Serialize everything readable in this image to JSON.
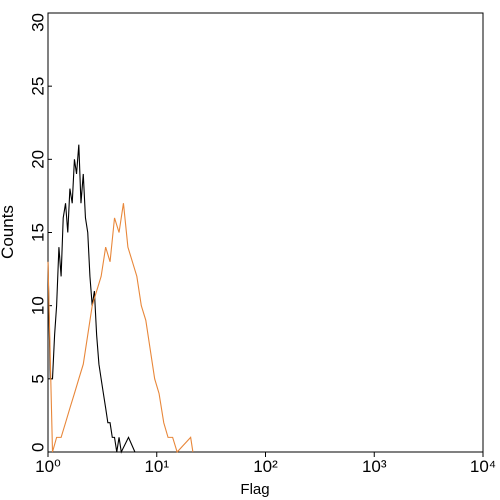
{
  "chart_data": {
    "type": "line",
    "x_label": "Flag",
    "y_label": "Counts",
    "xscale": "log",
    "xlim": [
      1,
      10000
    ],
    "ylim": [
      0,
      30
    ],
    "xticks": [
      {
        "value": 1,
        "label": "10⁰"
      },
      {
        "value": 10,
        "label": "10¹"
      },
      {
        "value": 100,
        "label": "10²"
      },
      {
        "value": 1000,
        "label": "10³"
      },
      {
        "value": 10000,
        "label": "10⁴"
      }
    ],
    "yticks": [
      0,
      5,
      10,
      15,
      20,
      25,
      30
    ],
    "series": [
      {
        "color": "#000000",
        "x": [
          1,
          1.05,
          1.1,
          1.15,
          1.2,
          1.26,
          1.32,
          1.38,
          1.45,
          1.52,
          1.59,
          1.67,
          1.75,
          1.83,
          1.92,
          2.01,
          2.11,
          2.21,
          2.32,
          2.43,
          2.55,
          2.67,
          2.8,
          2.94,
          3.08,
          3.23,
          3.39,
          3.55,
          3.72,
          3.9,
          4.09,
          4.29,
          4.5,
          4.72,
          5.5,
          6.3
        ],
        "values": [
          13,
          5,
          5,
          8,
          10,
          14,
          12,
          16,
          17,
          15,
          18,
          17,
          20,
          19,
          21,
          17,
          19,
          16,
          15,
          12,
          10,
          11,
          8,
          6,
          5,
          4,
          3,
          2,
          2,
          1,
          1,
          0,
          1,
          0,
          1,
          0
        ]
      },
      {
        "color": "#e8873a",
        "x": [
          1,
          1.1,
          1.2,
          1.32,
          1.45,
          1.59,
          1.75,
          1.92,
          2.11,
          2.32,
          2.55,
          2.8,
          3.08,
          3.39,
          3.72,
          4.09,
          4.5,
          4.94,
          5.43,
          5.97,
          6.56,
          7.21,
          7.93,
          8.71,
          9.57,
          10.5,
          11.6,
          12.7,
          14,
          15.4,
          20.5,
          21.5
        ],
        "values": [
          13,
          0,
          1,
          1,
          2,
          3,
          4,
          5,
          6,
          8,
          10,
          11,
          12,
          14,
          13,
          16,
          15,
          17,
          14,
          13,
          12,
          10,
          9,
          7,
          5,
          4,
          2,
          1,
          1,
          0,
          1,
          0
        ]
      }
    ]
  }
}
